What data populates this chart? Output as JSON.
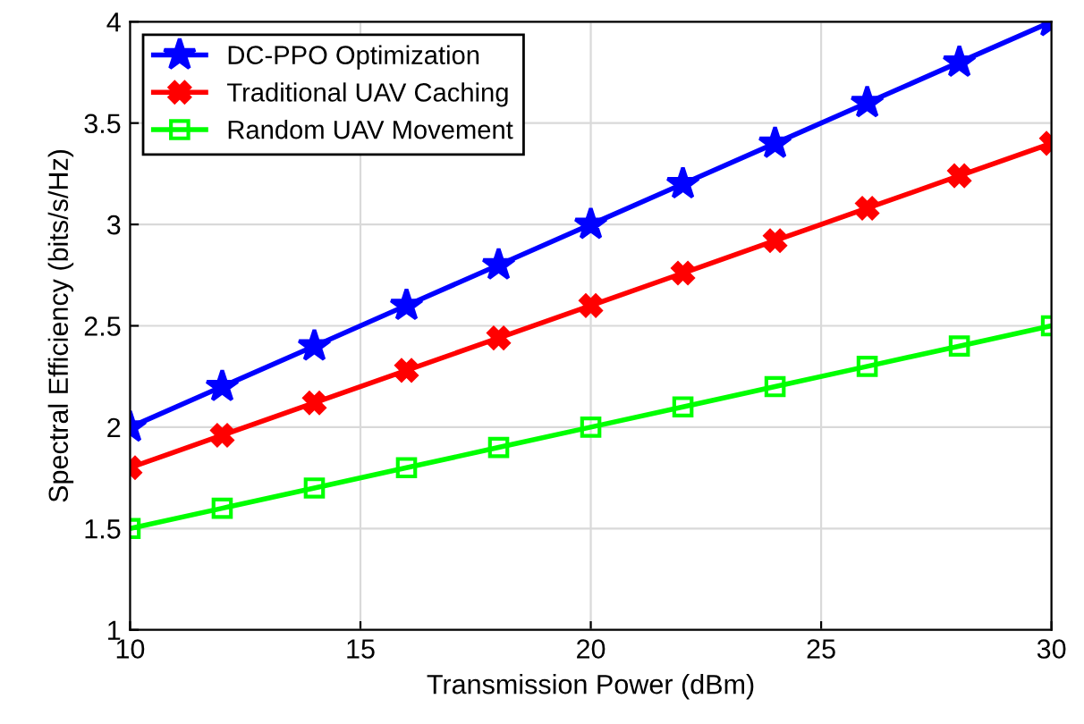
{
  "chart_data": {
    "type": "line",
    "xlabel": "Transmission Power (dBm)",
    "ylabel": "Spectral Efficiency (bits/s/Hz)",
    "x": [
      10,
      12,
      14,
      16,
      18,
      20,
      22,
      24,
      26,
      28,
      30
    ],
    "series": [
      {
        "name": "DC-PPO Optimization",
        "color": "#0000ff",
        "marker": "star",
        "values": [
          2.0,
          2.2,
          2.4,
          2.6,
          2.8,
          3.0,
          3.2,
          3.4,
          3.6,
          3.8,
          4.0
        ]
      },
      {
        "name": "Traditional UAV Caching",
        "color": "#ff0000",
        "marker": "cross",
        "values": [
          1.8,
          1.96,
          2.12,
          2.28,
          2.44,
          2.6,
          2.76,
          2.92,
          3.08,
          3.24,
          3.4
        ]
      },
      {
        "name": "Random UAV Movement",
        "color": "#00ff00",
        "marker": "square",
        "values": [
          1.5,
          1.6,
          1.7,
          1.8,
          1.9,
          2.0,
          2.1,
          2.2,
          2.3,
          2.4,
          2.5
        ]
      }
    ],
    "xlim": [
      10,
      30
    ],
    "xticks": [
      10,
      15,
      20,
      25,
      30
    ],
    "ylim": [
      1,
      4
    ],
    "yticks": [
      1,
      1.5,
      2,
      2.5,
      3,
      3.5,
      4
    ],
    "grid": true,
    "legend": "top left",
    "line_style": "solid"
  }
}
